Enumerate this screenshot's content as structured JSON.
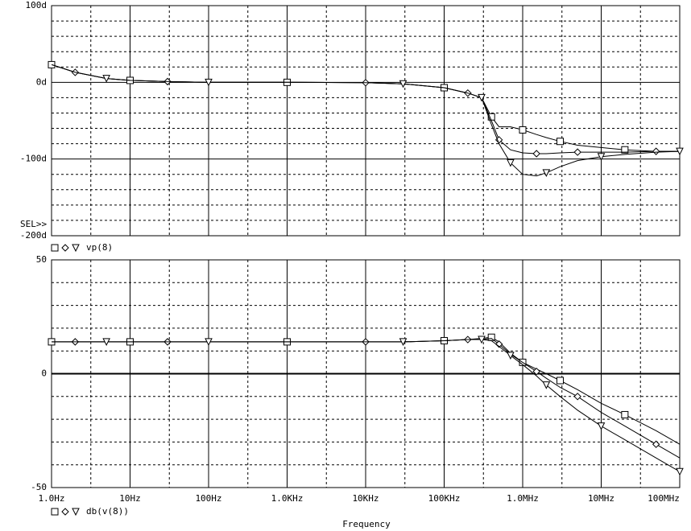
{
  "chart_data": [
    {
      "type": "line",
      "trace": "vp(8)",
      "annotation": "SEL>>",
      "x": [
        1,
        2,
        5,
        10,
        30,
        100,
        1000,
        10000,
        30000,
        100000,
        200000,
        300000,
        400000,
        500000,
        700000,
        1000000,
        1500000,
        2000000,
        3000000,
        5000000,
        10000000,
        20000000,
        50000000,
        100000000
      ],
      "series": [
        {
          "color": "#000000",
          "marker": "square",
          "values": [
            23,
            13,
            5,
            2.5,
            1,
            0,
            0,
            -0.5,
            -2,
            -7,
            -14,
            -20,
            -45,
            -58,
            -58,
            -62,
            -68,
            -72,
            -77,
            -82,
            -85,
            -88,
            -90,
            -90
          ]
        },
        {
          "color": "#000000",
          "marker": "diamond",
          "values": [
            23,
            13,
            5,
            2.5,
            1,
            0,
            0,
            -0.5,
            -2,
            -7,
            -14,
            -20,
            -50,
            -75,
            -88,
            -92,
            -93,
            -93,
            -92,
            -91,
            -91,
            -91,
            -90,
            -90
          ]
        },
        {
          "color": "#000000",
          "marker": "triangle",
          "values": [
            23,
            13,
            5,
            2.5,
            1,
            0,
            0,
            -0.5,
            -2,
            -7,
            -14,
            -20,
            -55,
            -80,
            -105,
            -120,
            -122,
            -118,
            -110,
            -102,
            -97,
            -94,
            -91,
            -90
          ]
        }
      ],
      "xscale": "log",
      "xlim": [
        1,
        100000000
      ],
      "xticks": [
        1,
        10,
        100,
        1000,
        10000,
        100000,
        1000000,
        10000000,
        100000000
      ],
      "ylim": [
        -200,
        100
      ],
      "yticks": [
        {
          "value": -200,
          "label": "-200d"
        },
        {
          "value": -100,
          "label": "-100d"
        },
        {
          "value": 0,
          "label": "0d"
        },
        {
          "value": 100,
          "label": "100d"
        }
      ],
      "grid": true
    },
    {
      "type": "line",
      "trace": "db(v(8))",
      "xlabel": "Frequency",
      "x": [
        1,
        2,
        5,
        10,
        30,
        100,
        1000,
        10000,
        30000,
        100000,
        200000,
        300000,
        400000,
        500000,
        700000,
        1000000,
        1500000,
        2000000,
        3000000,
        5000000,
        10000000,
        20000000,
        50000000,
        100000000
      ],
      "series": [
        {
          "color": "#000000",
          "marker": "square",
          "values": [
            14,
            14,
            14,
            14,
            14,
            14,
            14,
            14,
            14,
            14.5,
            15,
            15.5,
            16,
            14,
            9,
            5,
            2,
            0,
            -3,
            -7,
            -13,
            -18,
            -25,
            -31
          ]
        },
        {
          "color": "#000000",
          "marker": "diamond",
          "values": [
            14,
            14,
            14,
            14,
            14,
            14,
            14,
            14,
            14,
            14.5,
            15,
            15,
            15.5,
            13,
            8.5,
            5,
            1,
            -2,
            -6,
            -10,
            -17,
            -23,
            -31,
            -37
          ]
        },
        {
          "color": "#000000",
          "marker": "triangle",
          "values": [
            14,
            14,
            14,
            14,
            14,
            14,
            14,
            14,
            14,
            14.5,
            15,
            15,
            14.5,
            12,
            8,
            4,
            -1,
            -5,
            -10,
            -16,
            -23,
            -29,
            -37,
            -43
          ]
        }
      ],
      "xscale": "log",
      "xlim": [
        1,
        100000000
      ],
      "xticks": [
        {
          "value": 1,
          "label": "1.0Hz"
        },
        {
          "value": 10,
          "label": "10Hz"
        },
        {
          "value": 100,
          "label": "100Hz"
        },
        {
          "value": 1000,
          "label": "1.0KHz"
        },
        {
          "value": 10000,
          "label": "10KHz"
        },
        {
          "value": 100000,
          "label": "100KHz"
        },
        {
          "value": 1000000,
          "label": "1.0MHz"
        },
        {
          "value": 10000000,
          "label": "10MHz"
        },
        {
          "value": 100000000,
          "label": "100MHz"
        }
      ],
      "ylim": [
        -50,
        50
      ],
      "yticks": [
        -50,
        0,
        50
      ],
      "grid": true
    }
  ]
}
